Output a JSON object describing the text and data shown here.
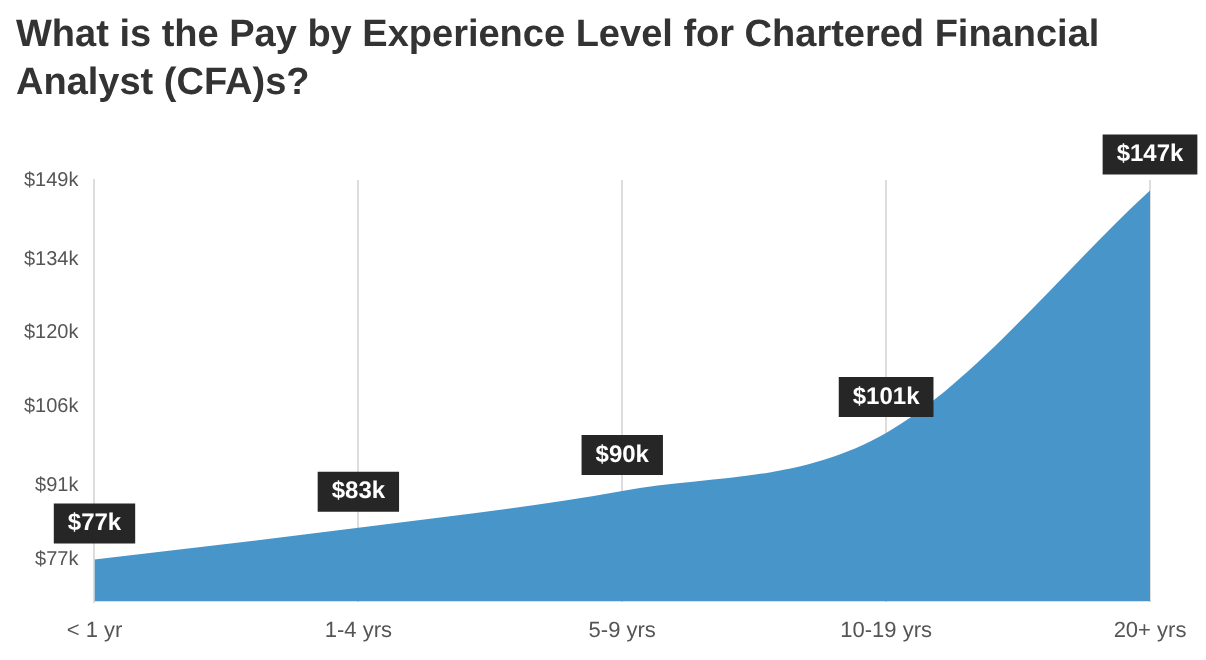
{
  "chart_data": {
    "type": "area",
    "title": "What is the Pay by Experience Level for Chartered Financial Analyst (CFA)s?",
    "categories": [
      "< 1 yr",
      "1-4 yrs",
      "5-9 yrs",
      "10-19 yrs",
      "20+ yrs"
    ],
    "series": [
      {
        "color": "#4795c9",
        "values": [
          77,
          83,
          90,
          101,
          147
        ],
        "value_labels": [
          "$77k",
          "$83k",
          "$90k",
          "$101k",
          "$147k"
        ]
      }
    ],
    "ylim": [
      69,
      149
    ],
    "yticks": [
      {
        "value": 77,
        "label": "$77k"
      },
      {
        "value": 91,
        "label": "$91k"
      },
      {
        "value": 106,
        "label": "$106k"
      },
      {
        "value": 120,
        "label": "$120k"
      },
      {
        "value": 134,
        "label": "$134k"
      },
      {
        "value": 149,
        "label": "$149k"
      }
    ],
    "grid": "x"
  }
}
